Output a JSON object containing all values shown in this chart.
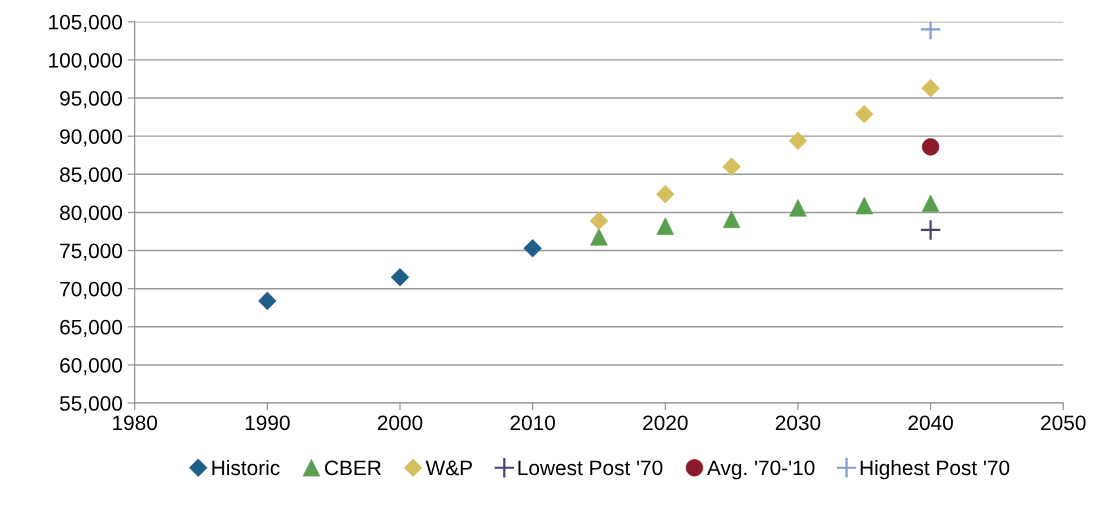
{
  "chart_data": {
    "type": "scatter",
    "xlim": [
      1980,
      2050
    ],
    "xticks": [
      1980,
      1990,
      2000,
      2010,
      2020,
      2030,
      2040,
      2050
    ],
    "ylim": [
      55000,
      105000
    ],
    "yticks": [
      {
        "value": 55000,
        "label": "55,000"
      },
      {
        "value": 60000,
        "label": "60,000"
      },
      {
        "value": 65000,
        "label": "65,000"
      },
      {
        "value": 70000,
        "label": "70,000"
      },
      {
        "value": 75000,
        "label": "75,000"
      },
      {
        "value": 80000,
        "label": "80,000"
      },
      {
        "value": 85000,
        "label": "85,000"
      },
      {
        "value": 90000,
        "label": "90,000"
      },
      {
        "value": 95000,
        "label": "95,000"
      },
      {
        "value": 100000,
        "label": "100,000"
      },
      {
        "value": 105000,
        "label": "105,000"
      }
    ],
    "grid": "y",
    "legend": "bottom",
    "series": [
      {
        "name": "Historic",
        "color": "#1f5f87",
        "marker": "diamond",
        "x": [
          1990,
          2000,
          2010
        ],
        "values": [
          68400,
          71500,
          75300
        ]
      },
      {
        "name": "CBER",
        "color": "#5a9e4e",
        "marker": "triangle",
        "x": [
          2015,
          2020,
          2025,
          2030,
          2035,
          2040
        ],
        "values": [
          76800,
          78200,
          79100,
          80600,
          80900,
          81200
        ]
      },
      {
        "name": "W&P",
        "color": "#d4bf5c",
        "marker": "diamond",
        "x": [
          2015,
          2020,
          2025,
          2030,
          2035,
          2040
        ],
        "values": [
          78900,
          82400,
          86000,
          89400,
          92900,
          96300
        ]
      },
      {
        "name": "Lowest Post '70",
        "color": "#4a3f73",
        "marker": "cross",
        "x": [
          2040
        ],
        "values": [
          77700
        ]
      },
      {
        "name": "Avg. '70-'10",
        "color": "#8b1a2b",
        "marker": "circle",
        "x": [
          2040
        ],
        "values": [
          88600
        ]
      },
      {
        "name": "Highest Post '70",
        "color": "#7f9ccf",
        "marker": "cross",
        "x": [
          2040
        ],
        "values": [
          104000
        ]
      }
    ]
  }
}
